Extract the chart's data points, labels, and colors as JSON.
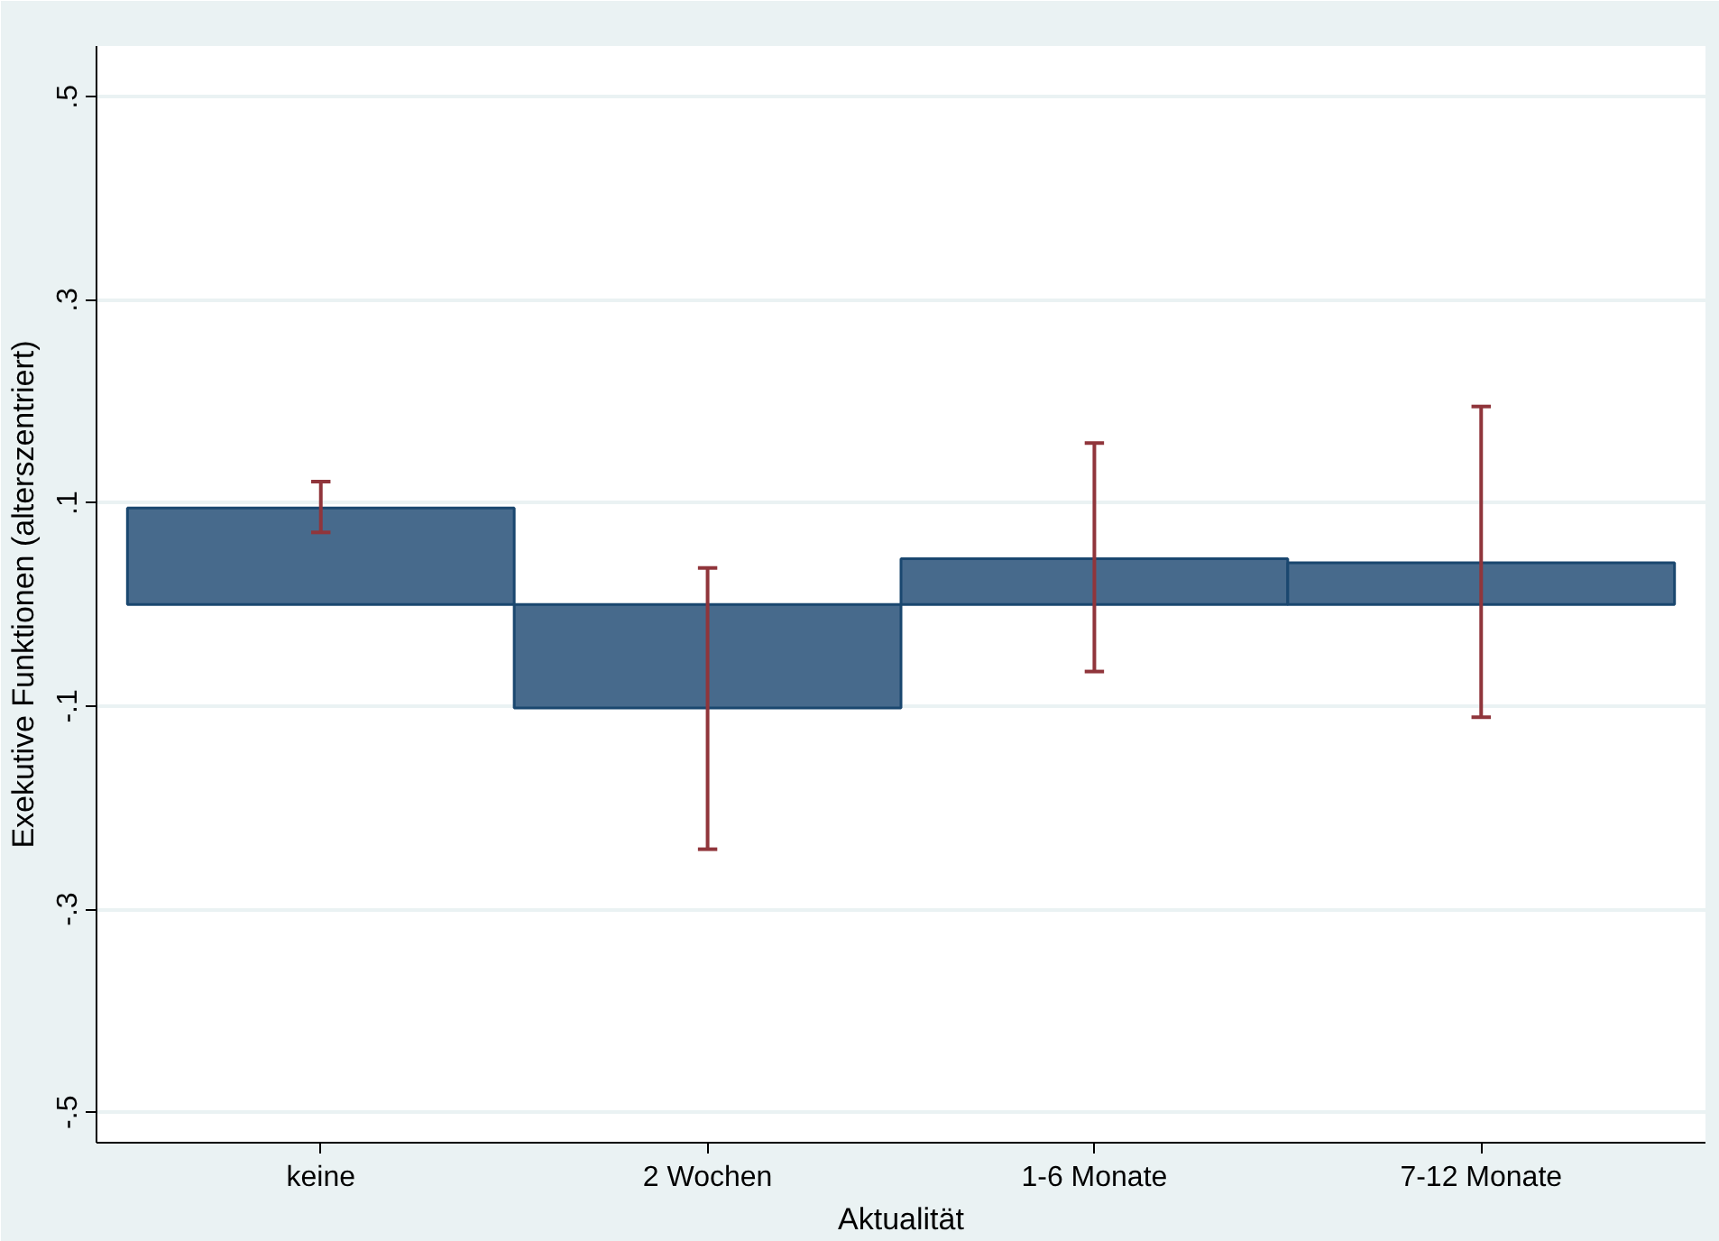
{
  "chart_data": {
    "type": "bar",
    "xlabel": "Aktualität",
    "ylabel": "Exekutive Funktionen (alterszentriert)",
    "categories": [
      "keine",
      "2 Wochen",
      "1-6 Monate",
      "7-12 Monate"
    ],
    "series": [
      {
        "color": "#476a8c",
        "values": [
          0.095,
          -0.102,
          0.045,
          0.041
        ],
        "errors": [
          [
            0.071,
            0.121
          ],
          [
            -0.241,
            0.036
          ],
          [
            -0.066,
            0.159
          ],
          [
            -0.111,
            0.195
          ]
        ]
      }
    ],
    "ylim": [
      -0.53,
      0.55
    ],
    "yticks": [
      {
        "value": -0.5,
        "label": "-.5"
      },
      {
        "value": -0.3,
        "label": "-.3"
      },
      {
        "value": -0.1,
        "label": "-.1"
      },
      {
        "value": 0.1,
        "label": ".1"
      },
      {
        "value": 0.3,
        "label": ".3"
      },
      {
        "value": 0.5,
        "label": ".5"
      }
    ],
    "grid": "y"
  }
}
